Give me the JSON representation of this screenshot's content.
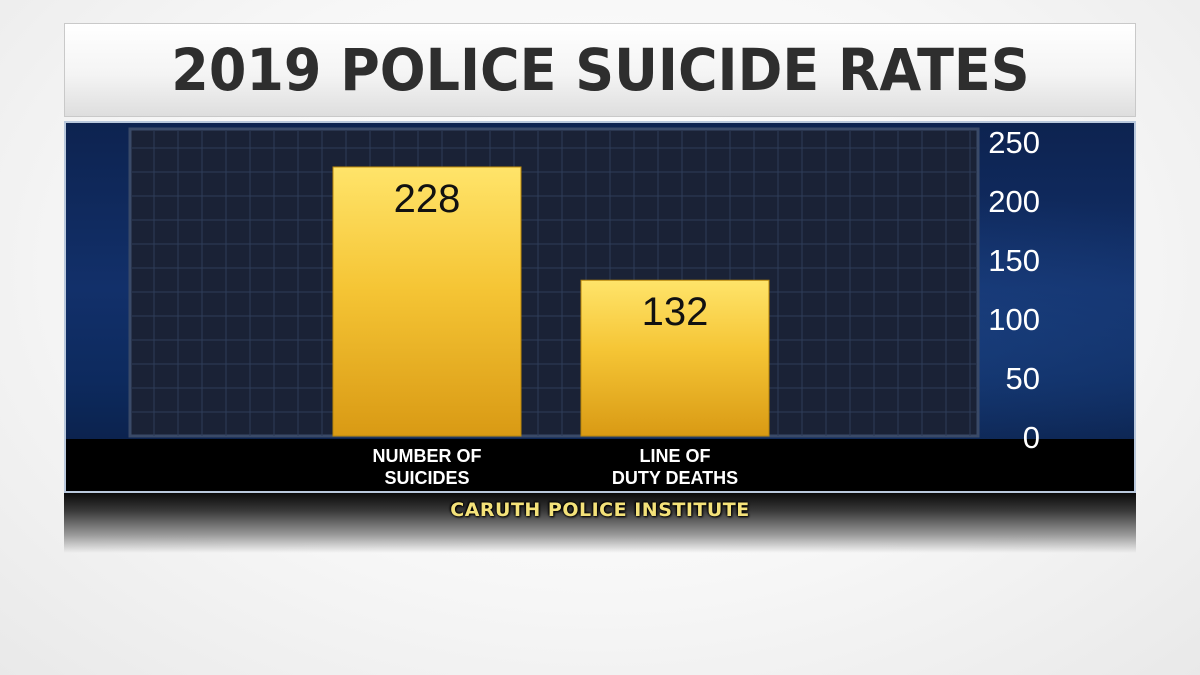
{
  "header": {
    "title": "2019 POLICE SUICIDE RATES"
  },
  "source": {
    "text": "CARUTH POLICE INSTITUTE"
  },
  "colors": {
    "bar": "#f2c230",
    "panel": "#12306a",
    "label_bar": "#000000",
    "source_text": "#f4e27a"
  },
  "chart_data": {
    "type": "bar",
    "categories": [
      [
        "NUMBER OF",
        "SUICIDES"
      ],
      [
        "LINE OF",
        "DUTY DEATHS"
      ]
    ],
    "values": [
      228,
      132
    ],
    "value_labels": [
      "228",
      "132"
    ],
    "ylim": [
      0,
      250
    ],
    "yticks": [
      0,
      50,
      100,
      150,
      200,
      250
    ],
    "ytick_labels": [
      "0",
      "50",
      "100",
      "150",
      "200",
      "250"
    ],
    "y_axis_side": "right",
    "grid": true,
    "title": "2019 POLICE SUICIDE RATES"
  }
}
